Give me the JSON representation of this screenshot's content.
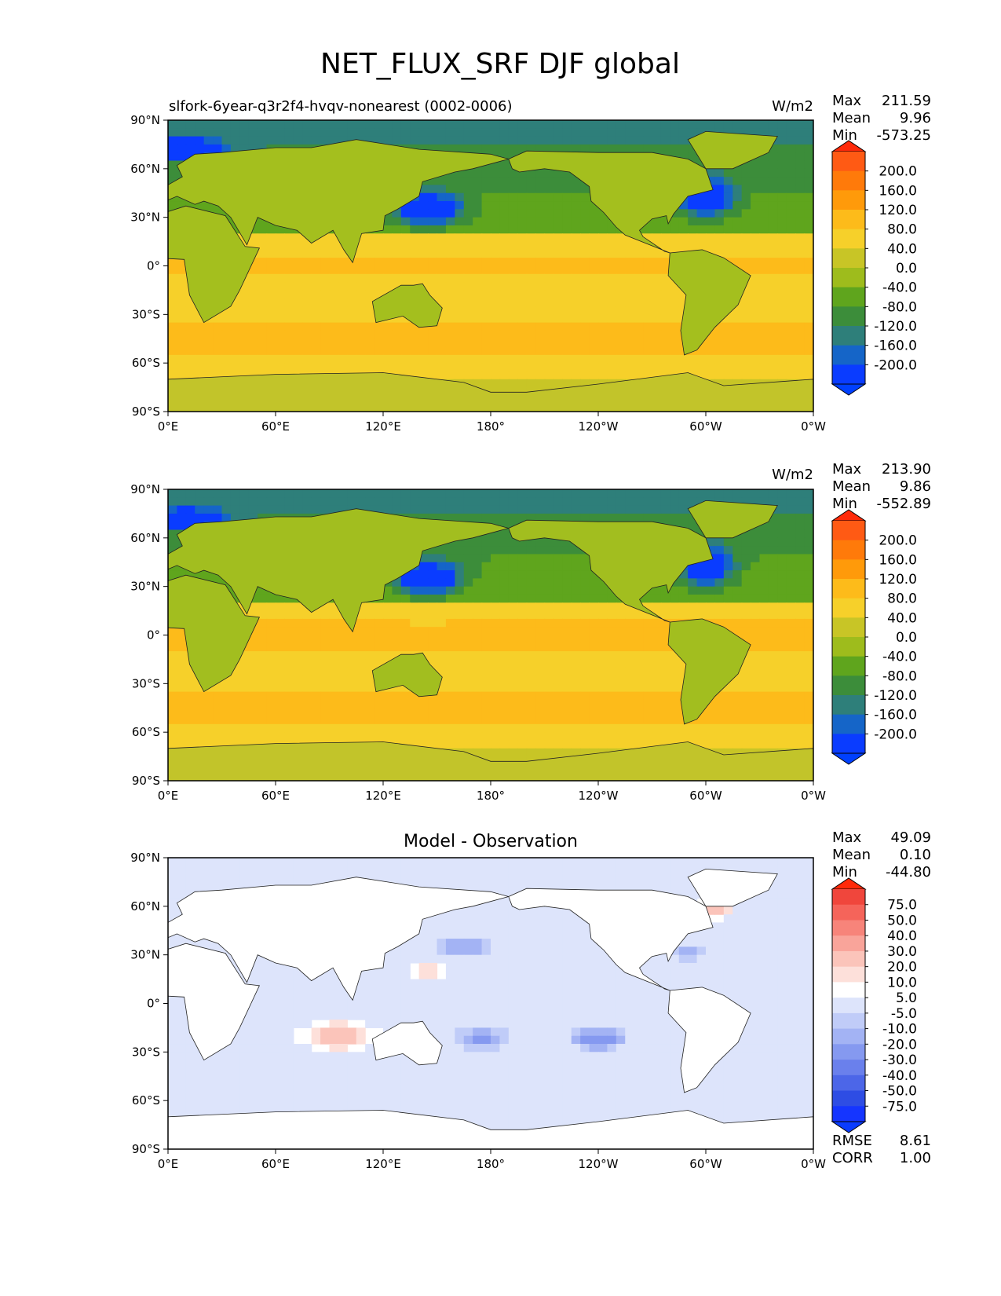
{
  "figure": {
    "title": "NET_FLUX_SRF DJF global"
  },
  "chart_data": [
    {
      "type": "heatmap",
      "panel": "model",
      "subtitle": "slfork-6year-q3r2f4-hvqv-nonearest (0002-0006)",
      "units": "W/m2",
      "stats": {
        "max_label": "Max",
        "max": "211.59",
        "mean_label": "Mean",
        "mean": "9.96",
        "min_label": "Min",
        "min": "-573.25"
      },
      "x_ticks": [
        "0°E",
        "60°E",
        "120°E",
        "180°",
        "120°W",
        "60°W",
        "0°W"
      ],
      "y_ticks": [
        "90°N",
        "60°N",
        "30°N",
        "0°",
        "30°S",
        "60°S",
        "90°S"
      ],
      "xlim": [
        0,
        360
      ],
      "ylim": [
        -90,
        90
      ],
      "colorbar": {
        "labels": [
          "200.0",
          "160.0",
          "120.0",
          "80.0",
          "40.0",
          "0.0",
          "-40.0",
          "-80.0",
          "-120.0",
          "-160.0",
          "-200.0"
        ],
        "colors": [
          "#ff5a14",
          "#ff7a0a",
          "#ff9a0a",
          "#fdbb1a",
          "#f6d02a",
          "#c8c526",
          "#9ebc1c",
          "#5fa51d",
          "#3c8d3a",
          "#2e7f7a",
          "#1565c8",
          "#0a3cff"
        ],
        "top_color": "#ff2a0a",
        "bottom_color": "#0040ff"
      }
    },
    {
      "type": "heatmap",
      "panel": "observation",
      "subtitle": "",
      "units": "W/m2",
      "stats": {
        "max_label": "Max",
        "max": "213.90",
        "mean_label": "Mean",
        "mean": "9.86",
        "min_label": "Min",
        "min": "-552.89"
      },
      "x_ticks": [
        "0°E",
        "60°E",
        "120°E",
        "180°",
        "120°W",
        "60°W",
        "0°W"
      ],
      "y_ticks": [
        "90°N",
        "60°N",
        "30°N",
        "0°",
        "30°S",
        "60°S",
        "90°S"
      ],
      "xlim": [
        0,
        360
      ],
      "ylim": [
        -90,
        90
      ],
      "colorbar": {
        "labels": [
          "200.0",
          "160.0",
          "120.0",
          "80.0",
          "40.0",
          "0.0",
          "-40.0",
          "-80.0",
          "-120.0",
          "-160.0",
          "-200.0"
        ],
        "colors": [
          "#ff5a14",
          "#ff7a0a",
          "#ff9a0a",
          "#fdbb1a",
          "#f6d02a",
          "#c8c526",
          "#9ebc1c",
          "#5fa51d",
          "#3c8d3a",
          "#2e7f7a",
          "#1565c8",
          "#0a3cff"
        ],
        "top_color": "#ff2a0a",
        "bottom_color": "#0040ff"
      }
    },
    {
      "type": "heatmap",
      "panel": "difference",
      "title": "Model - Observation",
      "units": "",
      "stats": {
        "max_label": "Max",
        "max": "49.09",
        "mean_label": "Mean",
        "mean": "0.10",
        "min_label": "Min",
        "min": "-44.80"
      },
      "x_ticks": [
        "0°E",
        "60°E",
        "120°E",
        "180°",
        "120°W",
        "60°W",
        "0°W"
      ],
      "y_ticks": [
        "90°N",
        "60°N",
        "30°N",
        "0°",
        "30°S",
        "60°S",
        "90°S"
      ],
      "xlim": [
        0,
        360
      ],
      "ylim": [
        -90,
        90
      ],
      "colorbar": {
        "labels": [
          "75.0",
          "50.0",
          "40.0",
          "30.0",
          "20.0",
          "10.0",
          "5.0",
          "-5.0",
          "-10.0",
          "-20.0",
          "-30.0",
          "-40.0",
          "-50.0",
          "-75.0"
        ],
        "colors": [
          "#f0463c",
          "#f5645a",
          "#f7847a",
          "#f9a49a",
          "#fbc4ba",
          "#fde0da",
          "#ffffff",
          "#dde4fb",
          "#c0ccf8",
          "#a3b3f4",
          "#8599f0",
          "#6a80ec",
          "#4c66e8",
          "#2e4de4",
          "#1535ff"
        ],
        "top_color": "#ff2a0a",
        "bottom_color": "#0a3cff"
      },
      "summary": {
        "rmse_label": "RMSE",
        "rmse": "8.61",
        "corr_label": "CORR",
        "corr": "1.00"
      }
    }
  ]
}
